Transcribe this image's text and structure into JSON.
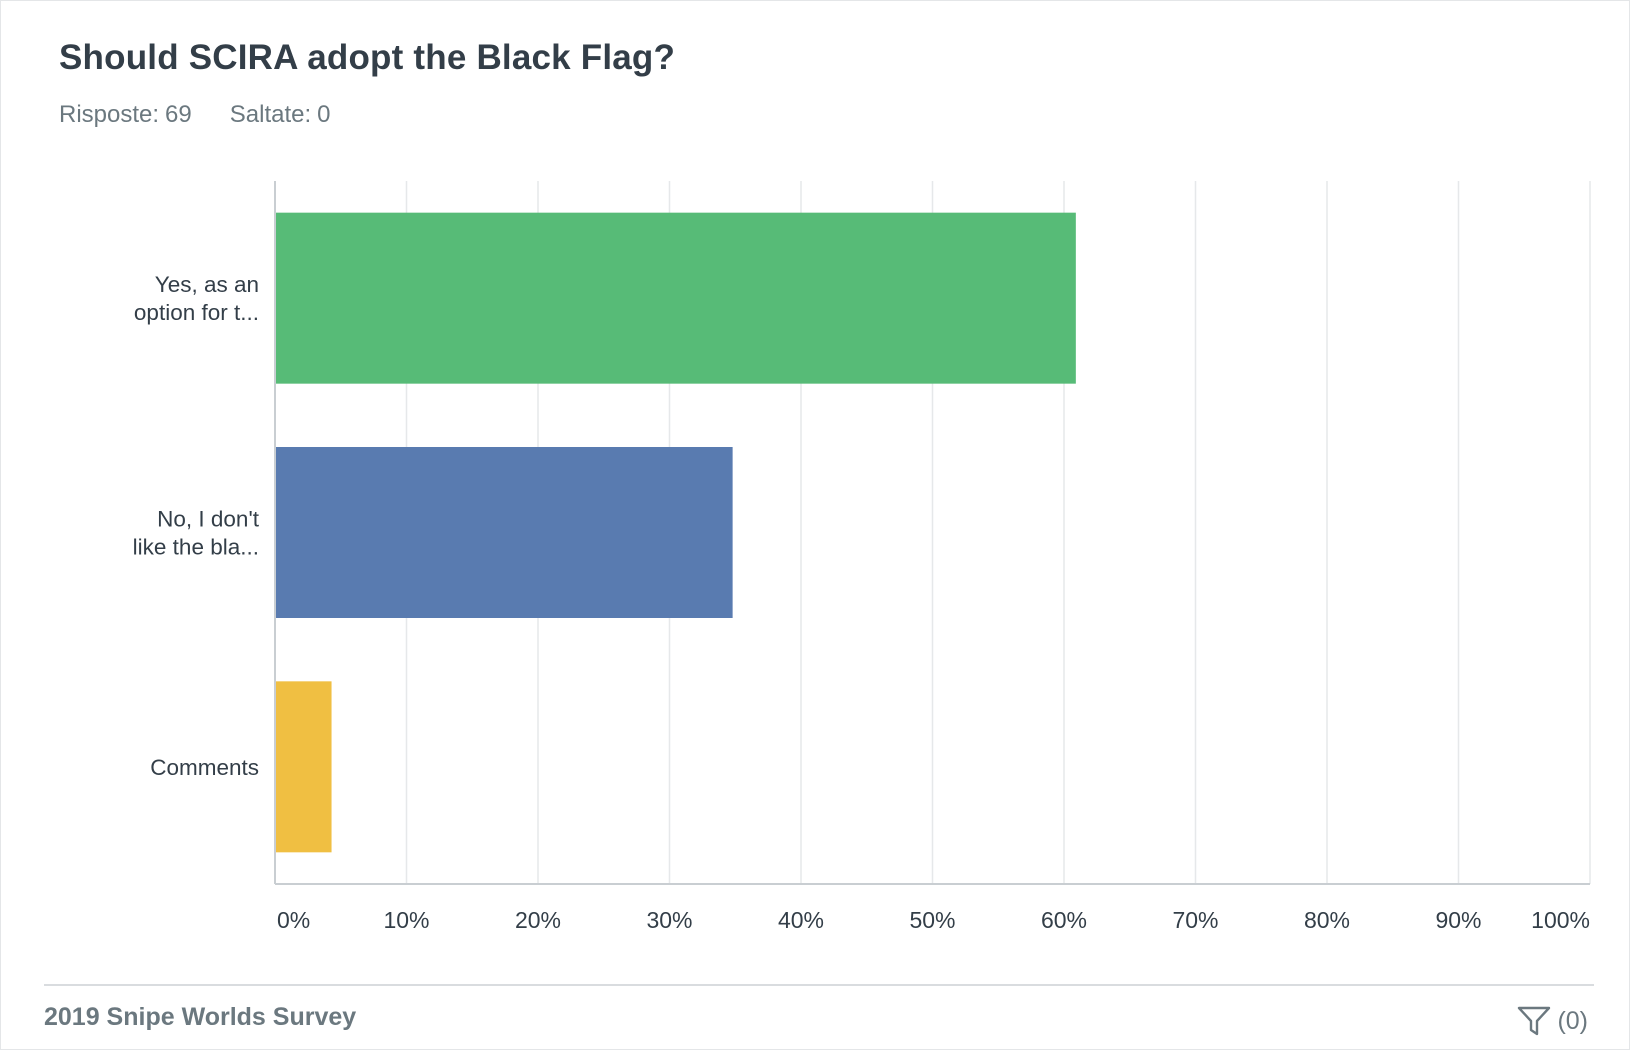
{
  "question": {
    "title": "Should SCIRA adopt the Black Flag?",
    "answered_label": "Risposte:",
    "answered_value": "69",
    "skipped_label": "Saltate:",
    "skipped_value": "0"
  },
  "chart_data": {
    "type": "bar",
    "orientation": "horizontal",
    "categories": [
      [
        "Yes, as an",
        "option for t..."
      ],
      [
        "No, I don't",
        "like the bla..."
      ],
      [
        "Comments"
      ]
    ],
    "values": [
      60.9,
      34.8,
      4.3
    ],
    "colors": [
      "#57bb77",
      "#597bb0",
      "#f0bf42"
    ],
    "xlim": [
      0,
      100
    ],
    "xticks": [
      "0%",
      "10%",
      "20%",
      "30%",
      "40%",
      "50%",
      "60%",
      "70%",
      "80%",
      "90%",
      "100%"
    ],
    "grid": true,
    "legend": "none"
  },
  "footer": {
    "survey_name": "2019 Snipe Worlds Survey",
    "filter_icon": "filter-icon",
    "filter_count": "(0)"
  }
}
